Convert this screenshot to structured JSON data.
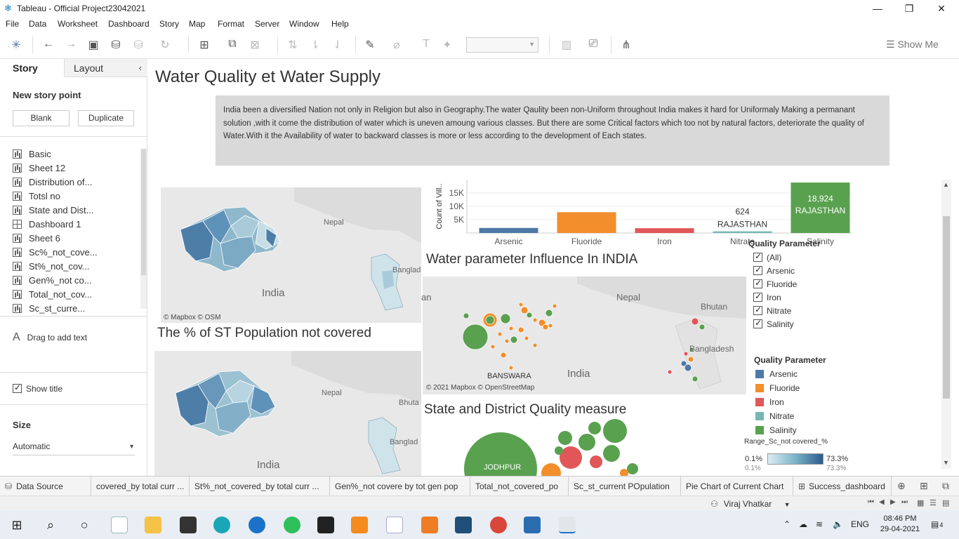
{
  "window": {
    "title": "Tableau - Official Project23042021",
    "minimize": "—",
    "restore": "❐",
    "close": "✕"
  },
  "menu": [
    "File",
    "Data",
    "Worksheet",
    "Dashboard",
    "Story",
    "Map",
    "Format",
    "Server",
    "Window",
    "Help"
  ],
  "toolbar": {
    "show_me": "Show Me",
    "icons": [
      "tableau-logo-icon",
      "undo-icon",
      "redo-icon",
      "save-icon",
      "new-datasource-icon",
      "pause-icon",
      "refresh-icon",
      "new-worksheet-icon",
      "duplicate-icon",
      "clear-icon",
      "swap-icon",
      "sort-asc-icon",
      "sort-desc-icon",
      "highlight-icon",
      "attach-icon",
      "text-icon",
      "pin-icon",
      "chart-type-icon",
      "present-icon",
      "share-icon"
    ]
  },
  "left_pane": {
    "tab_story": "Story",
    "tab_layout": "Layout",
    "collapse": "‹",
    "new_story_point": "New story point",
    "blank_button": "Blank",
    "duplicate_button": "Duplicate",
    "sheets": [
      {
        "label": "Basic",
        "type": "sheet"
      },
      {
        "label": "Sheet 12",
        "type": "sheet"
      },
      {
        "label": "Distribution of...",
        "type": "sheet"
      },
      {
        "label": "Totsl no",
        "type": "sheet"
      },
      {
        "label": "State and Dist...",
        "type": "sheet"
      },
      {
        "label": "Dashboard 1",
        "type": "dashboard"
      },
      {
        "label": "Sheet 6",
        "type": "sheet"
      },
      {
        "label": "Sc%_not_cove...",
        "type": "sheet"
      },
      {
        "label": "St%_not_cov...",
        "type": "sheet"
      },
      {
        "label": "Gen%_not co...",
        "type": "sheet"
      },
      {
        "label": "Total_not_cov...",
        "type": "sheet"
      },
      {
        "label": "Sc_st_curre...",
        "type": "sheet"
      }
    ],
    "drag_text": "Drag to add text",
    "drag_icon": "A",
    "show_title": "Show title",
    "size_label": "Size",
    "size_value": "Automatic"
  },
  "story": {
    "title": "Water Quality et Water Supply",
    "description": "India been a diversified Nation not only in Religion but also in  Geography.The water Qaulity been non-Uniform throughout India makes it hard for Uniformaly Making a permanant solution ,with it come the distribution of water which is uneven amoung various classes. But there are some Critical factors which too not by natural factors, deteriorate the quality of Water.With it the Availability of water to backward classes is more or less according to the development of Each states.",
    "map1": {
      "nepal": "Nepal",
      "india": "India",
      "bangladesh": "Banglad",
      "credit": "© Mapbox © OSM"
    },
    "st_title": "The % of ST Population not covered",
    "map2": {
      "nepal": "Nepal",
      "india": "India",
      "bhutan": "Bhuta",
      "bangladesh": "Banglad"
    },
    "influence_title": "Water parameter Influence In INDIA",
    "map3": {
      "pak": "an",
      "nepal": "Nepal",
      "bhutan": "Bhutan",
      "bangladesh": "Bangladesh",
      "india": "India",
      "banswara": "BANSWARA",
      "credit": "© 2021 Mapbox © OpenStreetMap"
    },
    "district_title": "State and District Quality measure",
    "bubble_label": "JODHPUR"
  },
  "chart_data": {
    "type": "bar",
    "ylabel": "Count of Vill..",
    "yticks": [
      "15K",
      "10K",
      "5K"
    ],
    "ylim": [
      0,
      20000
    ],
    "categories": [
      "Arsenic",
      "Fluoride",
      "Iron",
      "Nitrate",
      "Salinity"
    ],
    "values": [
      1900,
      7800,
      1800,
      624,
      18924
    ],
    "colors": [
      "#4e79a7",
      "#f28e2b",
      "#e15759",
      "#76b7b2",
      "#59a14f"
    ],
    "annotations": [
      {
        "category": "Nitrate",
        "value_text": "624",
        "label": "RAJASTHAN"
      },
      {
        "category": "Salinity",
        "value_text": "18,924",
        "label": "RAJASTHAN"
      }
    ]
  },
  "filter": {
    "title": "Quality Parameter",
    "options": [
      "(All)",
      "Arsenic",
      "Fluoride",
      "Iron",
      "Nitrate",
      "Salinity"
    ]
  },
  "legend": {
    "title": "Quality Parameter",
    "items": [
      {
        "label": "Arsenic",
        "color": "#4e79a7"
      },
      {
        "label": "Fluoride",
        "color": "#f28e2b"
      },
      {
        "label": "Iron",
        "color": "#e15759"
      },
      {
        "label": "Nitrate",
        "color": "#76b7b2"
      },
      {
        "label": "Salinity",
        "color": "#59a14f"
      }
    ]
  },
  "range_legend": {
    "title": "Range_Sc_not covered_%",
    "min": "0.1%",
    "max": "73.3%",
    "min2": "0.1%",
    "max2": "73.3%"
  },
  "sheet_tabs": [
    "Data Source",
    "covered_by total curr ...",
    "St%_not_covered_by total curr ...",
    "Gen%_not covere by tot gen pop",
    "Total_not_covered_po",
    "Sc_st_current POpulation",
    "Pie Chart of Current Chart",
    "Success_dashboard"
  ],
  "status": {
    "user": "Viraj Vhatkar"
  },
  "taskbar": {
    "time": "08:46 PM",
    "date": "29-04-2021",
    "lang": "ENG",
    "notifications": "4"
  }
}
